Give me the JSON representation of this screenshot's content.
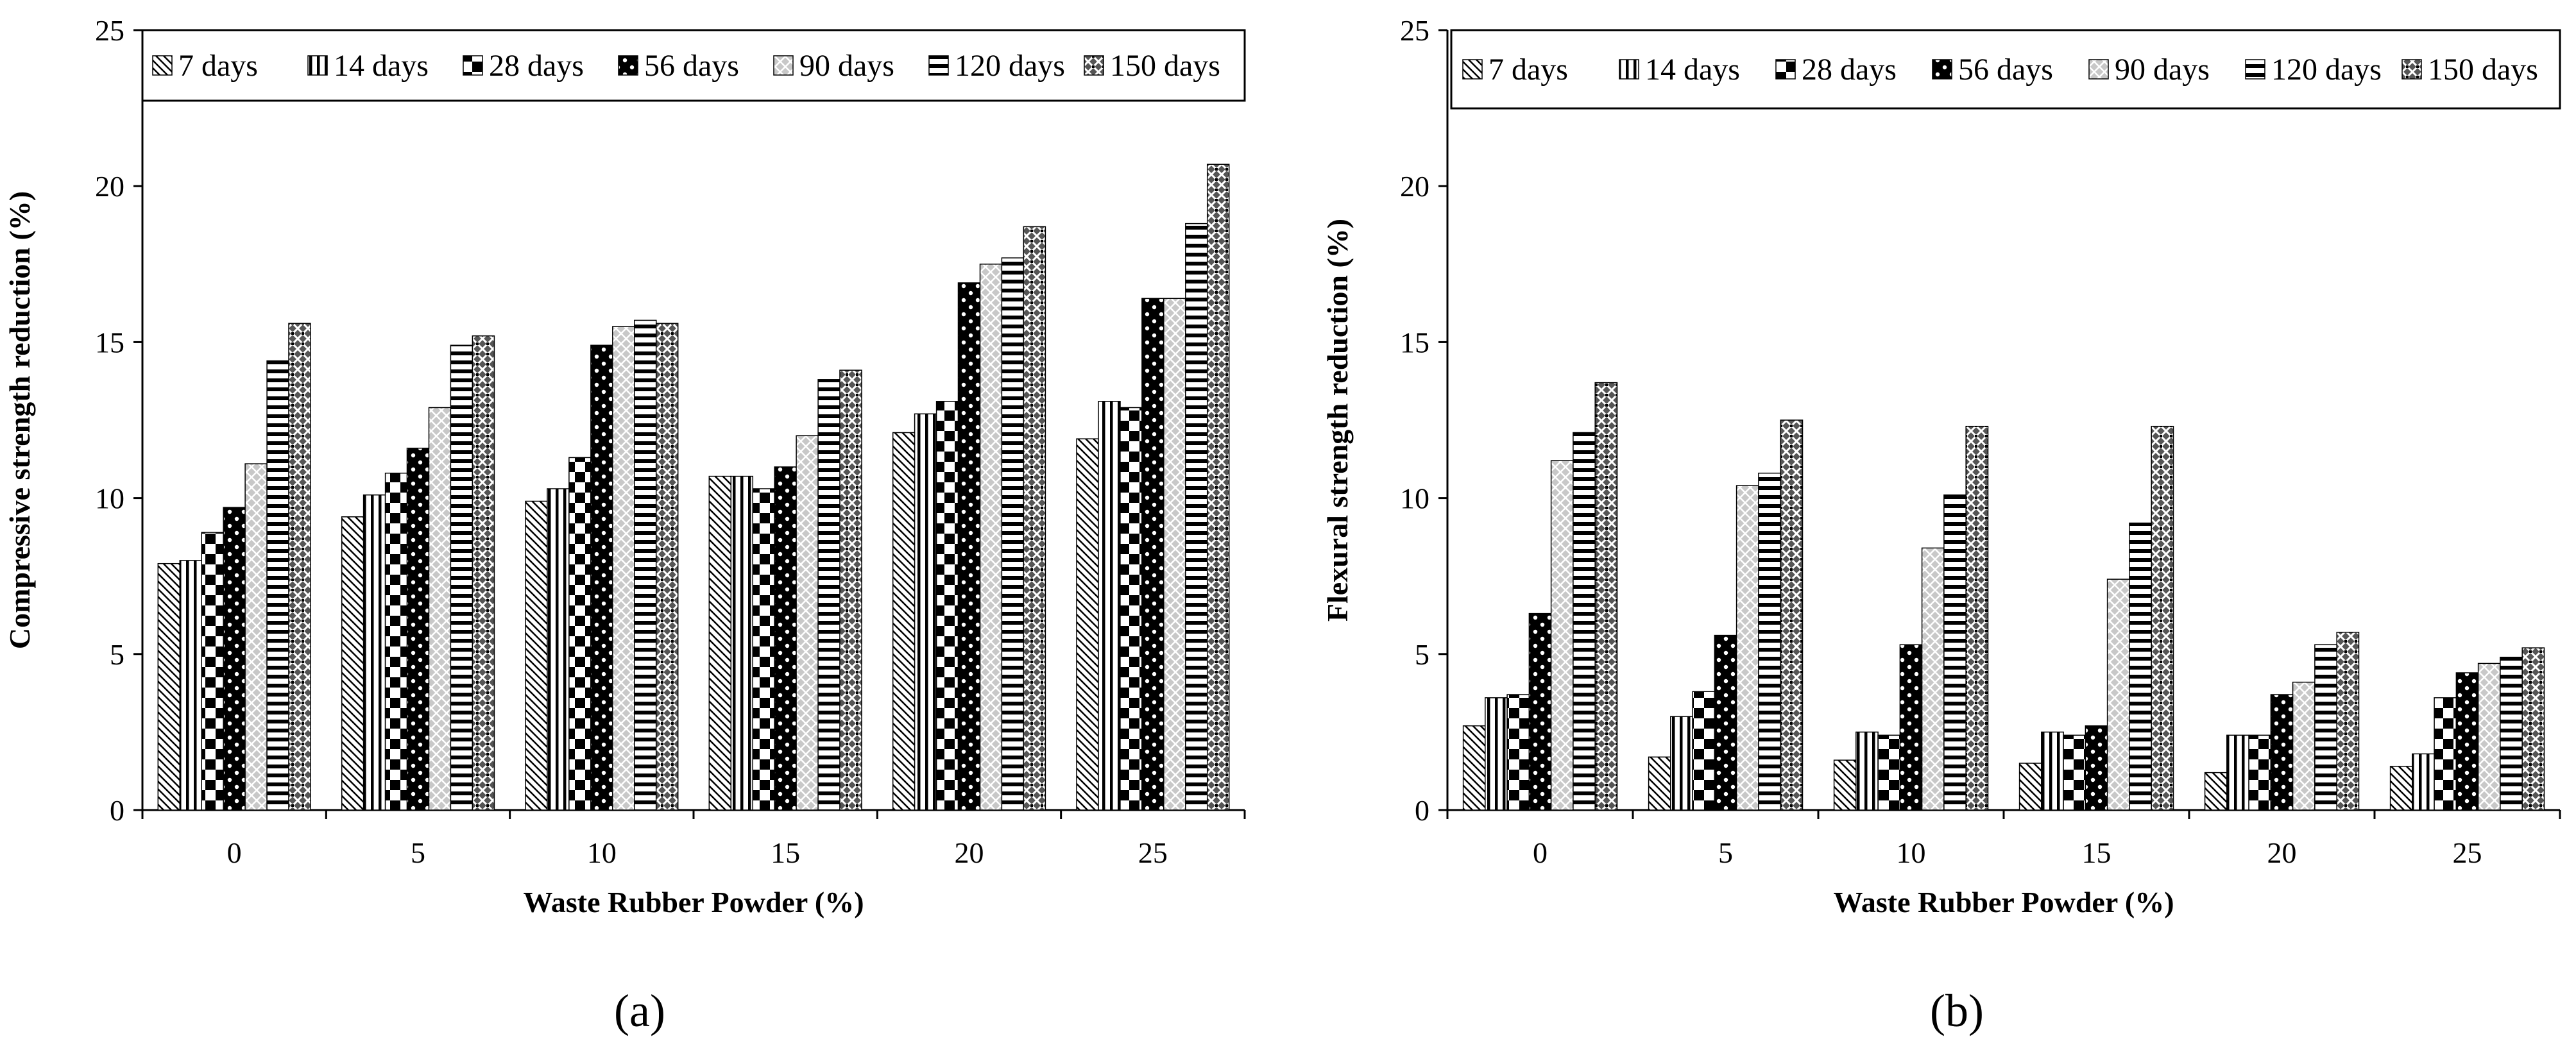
{
  "figure": {
    "panel_labels": {
      "a": "(a)",
      "b": "(b)"
    }
  },
  "chart_data": [
    {
      "type": "bar",
      "title": "",
      "xlabel": "Waste Rubber Powder (%)",
      "ylabel": "Compressive strength reduction (%)",
      "ylim": [
        0,
        25
      ],
      "yticks": [
        "0",
        "5",
        "10",
        "15",
        "20",
        "25"
      ],
      "categories": [
        "0",
        "5",
        "10",
        "15",
        "20",
        "25"
      ],
      "legend_position": "top",
      "series": [
        {
          "name": "7 days",
          "pattern": "diag-back",
          "values": [
            7.9,
            9.4,
            9.9,
            10.7,
            12.1,
            11.9
          ]
        },
        {
          "name": "14 days",
          "pattern": "vert",
          "values": [
            8.0,
            10.1,
            10.3,
            10.7,
            12.7,
            13.1
          ]
        },
        {
          "name": "28 days",
          "pattern": "check",
          "values": [
            8.9,
            10.8,
            11.3,
            10.3,
            13.1,
            12.9
          ]
        },
        {
          "name": "56 days",
          "pattern": "dots",
          "values": [
            9.7,
            11.6,
            14.9,
            11.0,
            16.9,
            16.4
          ]
        },
        {
          "name": "90 days",
          "pattern": "cross-gray",
          "values": [
            11.1,
            12.9,
            15.5,
            12.0,
            17.5,
            16.4
          ]
        },
        {
          "name": "120 days",
          "pattern": "horiz",
          "values": [
            14.4,
            14.9,
            15.7,
            13.8,
            17.7,
            18.8
          ]
        },
        {
          "name": "150 days",
          "pattern": "weave",
          "values": [
            15.6,
            15.2,
            15.6,
            14.1,
            18.7,
            20.7
          ]
        }
      ]
    },
    {
      "type": "bar",
      "title": "",
      "xlabel": "Waste Rubber Powder (%)",
      "ylabel": "Flexural strength reduction (%)",
      "ylim": [
        0,
        25
      ],
      "yticks": [
        "0",
        "5",
        "10",
        "15",
        "20",
        "25"
      ],
      "categories": [
        "0",
        "5",
        "10",
        "15",
        "20",
        "25"
      ],
      "legend_position": "top",
      "series": [
        {
          "name": "7 days",
          "pattern": "diag-back",
          "values": [
            2.7,
            1.7,
            1.6,
            1.5,
            1.2,
            1.4
          ]
        },
        {
          "name": "14 days",
          "pattern": "vert",
          "values": [
            3.6,
            3.0,
            2.5,
            2.5,
            2.4,
            1.8
          ]
        },
        {
          "name": "28 days",
          "pattern": "check",
          "values": [
            3.7,
            3.8,
            2.4,
            2.4,
            2.4,
            3.6
          ]
        },
        {
          "name": "56 days",
          "pattern": "dots",
          "values": [
            6.3,
            5.6,
            5.3,
            2.7,
            3.7,
            4.4
          ]
        },
        {
          "name": "90 days",
          "pattern": "cross-gray",
          "values": [
            11.2,
            10.4,
            8.4,
            7.4,
            4.1,
            4.7
          ]
        },
        {
          "name": "120 days",
          "pattern": "horiz",
          "values": [
            12.1,
            10.8,
            10.1,
            9.2,
            5.3,
            4.9
          ]
        },
        {
          "name": "150 days",
          "pattern": "weave",
          "values": [
            13.7,
            12.5,
            12.3,
            12.3,
            5.7,
            5.2
          ]
        }
      ]
    }
  ]
}
